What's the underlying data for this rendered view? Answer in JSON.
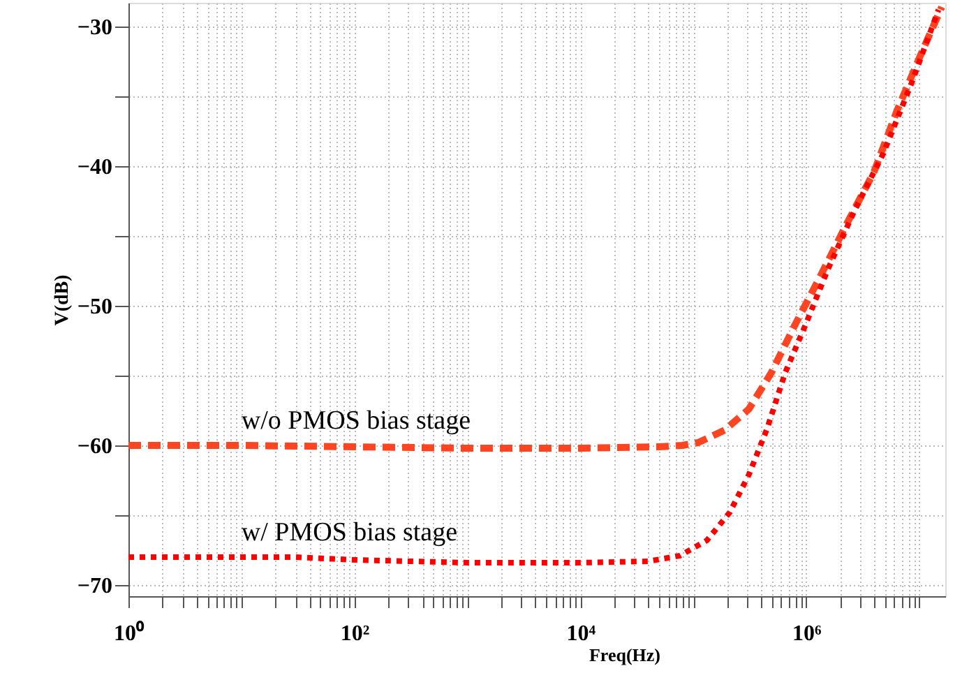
{
  "chart_data": {
    "type": "line",
    "xlabel": "Freq(Hz)",
    "ylabel": "V(dB)",
    "log": "x",
    "grid": true,
    "xlim": [
      1,
      17000000
    ],
    "ylim": [
      -70.8,
      -28.3
    ],
    "xticks": [
      {
        "value": 1,
        "label": "10⁰"
      },
      {
        "value": 2,
        "label": null
      },
      {
        "value": 3,
        "label": null
      },
      {
        "value": 4,
        "label": null
      },
      {
        "value": 5,
        "label": null
      },
      {
        "value": 6,
        "label": null
      },
      {
        "value": 7,
        "label": null
      },
      {
        "value": 8,
        "label": null
      },
      {
        "value": 9,
        "label": null
      },
      {
        "value": 10,
        "label": null
      },
      {
        "value": 20,
        "label": null
      },
      {
        "value": 30,
        "label": null
      },
      {
        "value": 40,
        "label": null
      },
      {
        "value": 50,
        "label": null
      },
      {
        "value": 60,
        "label": null
      },
      {
        "value": 70,
        "label": null
      },
      {
        "value": 80,
        "label": null
      },
      {
        "value": 90,
        "label": null
      },
      {
        "value": 100,
        "label": "10²"
      },
      {
        "value": 200,
        "label": null
      },
      {
        "value": 300,
        "label": null
      },
      {
        "value": 400,
        "label": null
      },
      {
        "value": 500,
        "label": null
      },
      {
        "value": 600,
        "label": null
      },
      {
        "value": 700,
        "label": null
      },
      {
        "value": 800,
        "label": null
      },
      {
        "value": 900,
        "label": null
      },
      {
        "value": 1000,
        "label": null
      },
      {
        "value": 2000,
        "label": null
      },
      {
        "value": 3000,
        "label": null
      },
      {
        "value": 4000,
        "label": null
      },
      {
        "value": 5000,
        "label": null
      },
      {
        "value": 6000,
        "label": null
      },
      {
        "value": 7000,
        "label": null
      },
      {
        "value": 8000,
        "label": null
      },
      {
        "value": 9000,
        "label": null
      },
      {
        "value": 10000,
        "label": "10⁴"
      },
      {
        "value": 20000,
        "label": null
      },
      {
        "value": 30000,
        "label": null
      },
      {
        "value": 40000,
        "label": null
      },
      {
        "value": 50000,
        "label": null
      },
      {
        "value": 60000,
        "label": null
      },
      {
        "value": 70000,
        "label": null
      },
      {
        "value": 80000,
        "label": null
      },
      {
        "value": 90000,
        "label": null
      },
      {
        "value": 100000,
        "label": null
      },
      {
        "value": 200000,
        "label": null
      },
      {
        "value": 300000,
        "label": null
      },
      {
        "value": 400000,
        "label": null
      },
      {
        "value": 500000,
        "label": null
      },
      {
        "value": 600000,
        "label": null
      },
      {
        "value": 700000,
        "label": null
      },
      {
        "value": 800000,
        "label": null
      },
      {
        "value": 900000,
        "label": null
      },
      {
        "value": 1000000,
        "label": "10⁶"
      },
      {
        "value": 2000000,
        "label": null
      },
      {
        "value": 3000000,
        "label": null
      },
      {
        "value": 4000000,
        "label": null
      },
      {
        "value": 5000000,
        "label": null
      },
      {
        "value": 6000000,
        "label": null
      },
      {
        "value": 7000000,
        "label": null
      },
      {
        "value": 8000000,
        "label": null
      },
      {
        "value": 9000000,
        "label": null
      },
      {
        "value": 10000000,
        "label": null
      }
    ],
    "yticks": [
      -30,
      {
        "value": -35,
        "label": null
      },
      -40,
      {
        "value": -45,
        "label": null
      },
      -50,
      {
        "value": -55,
        "label": null
      },
      -60,
      {
        "value": -65,
        "label": null
      },
      -70
    ],
    "series": [
      {
        "name": "w/o PMOS bias stage",
        "color": "#ff4422",
        "line_style": "dashed",
        "x": [
          1,
          10,
          100,
          1000,
          10000,
          50000,
          80000,
          110000,
          190000,
          310000,
          490000,
          790000,
          1290000,
          2290000,
          3980000,
          6300000,
          10200000,
          15800000
        ],
        "values": [
          -60,
          -60,
          -60.1,
          -60.2,
          -60.2,
          -60.1,
          -60,
          -59.8,
          -58.9,
          -57.4,
          -54.8,
          -51.4,
          -48.1,
          -44.1,
          -40.4,
          -36.1,
          -32.1,
          -28.6
        ]
      },
      {
        "name": "w/ PMOS bias stage",
        "color": "#ff0000",
        "line_style": "dotted",
        "x": [
          1,
          10,
          30,
          100,
          1000,
          10000,
          40000,
          76000,
          132000,
          210000,
          310000,
          450000,
          650000,
          980000,
          1550000,
          2700000,
          4800000,
          8500000,
          14800000
        ],
        "values": [
          -68,
          -68,
          -68,
          -68.2,
          -68.4,
          -68.4,
          -68.3,
          -67.9,
          -66.8,
          -64.8,
          -62.1,
          -58.8,
          -54.8,
          -51.4,
          -47.4,
          -43.1,
          -39.1,
          -34.1,
          -28.8
        ]
      }
    ]
  }
}
